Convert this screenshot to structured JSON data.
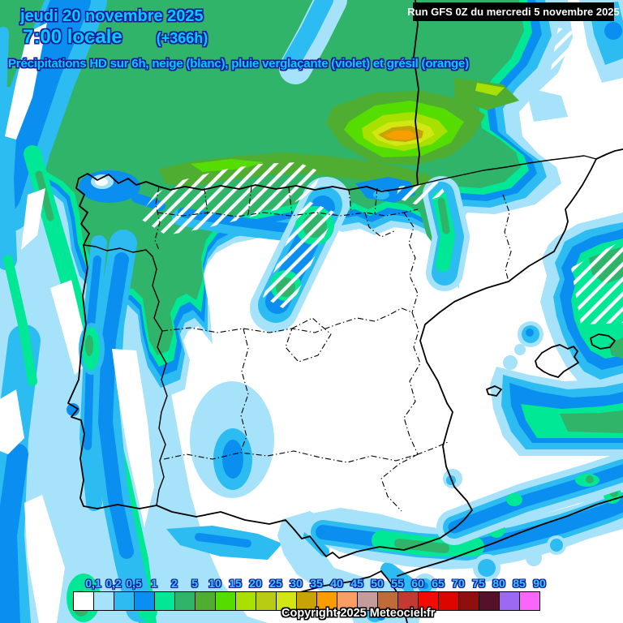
{
  "header": {
    "date_line": "jeudi 20 novembre 2025",
    "time_line": "7:00 locale",
    "offset": "(+366h)",
    "subtitle": "Précipitations HD sur 6h, neige (blanc), pluie verglaçante (violet) et grésil (orange)"
  },
  "run_info": {
    "label": "Run GFS 0Z du mercredi 5 novembre 2025"
  },
  "copyright": "Copyright 2025 Meteociel.fr",
  "text_colors": {
    "header_fill": "#00ccff",
    "header_outline": "#1a1a99",
    "run_text": "#ffffff",
    "run_background": "#000000",
    "copyright_fill": "#ffffff"
  },
  "legend": {
    "description": "precipitation scale (mm / 6h), label at right boundary of each cell",
    "items": [
      {
        "label": "0,1",
        "color": "#ffffff"
      },
      {
        "label": "0,2",
        "color": "#a6e2fa"
      },
      {
        "label": "0,5",
        "color": "#2cbcf2"
      },
      {
        "label": "1",
        "color": "#0a8ef0"
      },
      {
        "label": "2",
        "color": "#00e896"
      },
      {
        "label": "5",
        "color": "#2fb469"
      },
      {
        "label": "10",
        "color": "#4fad32"
      },
      {
        "label": "15",
        "color": "#55dd00"
      },
      {
        "label": "20",
        "color": "#a8e000"
      },
      {
        "label": "25",
        "color": "#b9cc14"
      },
      {
        "label": "30",
        "color": "#d2e613"
      },
      {
        "label": "35",
        "color": "#c8a305"
      },
      {
        "label": "40",
        "color": "#fa9e00"
      },
      {
        "label": "45",
        "color": "#fa9e64"
      },
      {
        "label": "50",
        "color": "#c49c9c"
      },
      {
        "label": "55",
        "color": "#c06b3a"
      },
      {
        "label": "60",
        "color": "#c23a31"
      },
      {
        "label": "65",
        "color": "#f50a00"
      },
      {
        "label": "70",
        "color": "#dc0500"
      },
      {
        "label": "75",
        "color": "#8f0e0e"
      },
      {
        "label": "80",
        "color": "#561029"
      },
      {
        "label": "85",
        "color": "#9b69f2"
      },
      {
        "label": "90",
        "color": "#fa66fa"
      }
    ]
  }
}
